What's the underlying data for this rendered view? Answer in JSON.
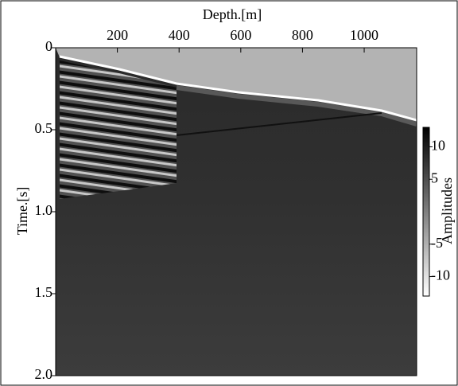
{
  "chart_data": {
    "type": "seismic-section",
    "title": "Depth.[m]",
    "y_label": "Time.[s]",
    "colorbar_label": "Amplitudes",
    "xlim": [
      0,
      1170
    ],
    "xticks": [
      200,
      400,
      600,
      800,
      1000
    ],
    "ylim": [
      0,
      2.0
    ],
    "yticks": [
      0,
      0.5,
      {
        "value": 1.0,
        "label": "1.0"
      },
      1.5,
      {
        "value": 2.0,
        "label": "2.0"
      }
    ],
    "y_inverted": true,
    "clim": [
      -13,
      13
    ],
    "cticks": [
      10,
      5,
      -5,
      -10
    ],
    "colormap": "gray_r"
  }
}
